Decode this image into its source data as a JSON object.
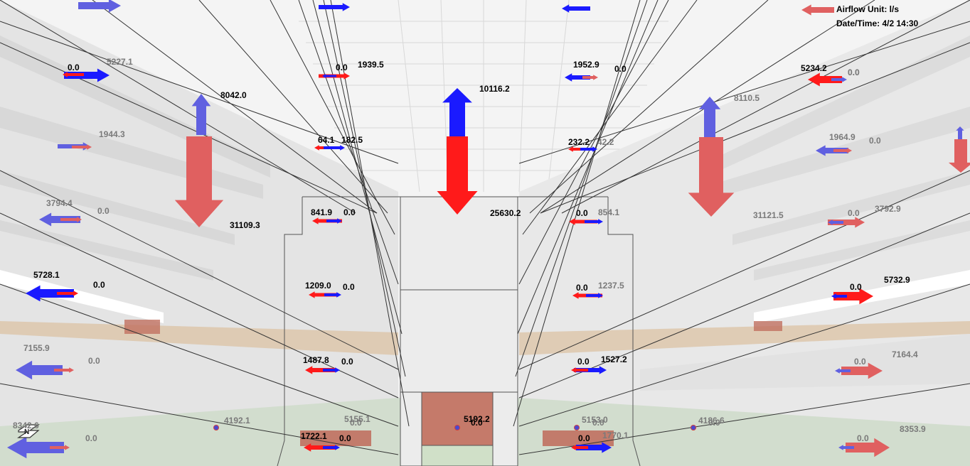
{
  "hud": {
    "airflow_unit": "Airflow Unit: l/s",
    "date_time": "Date/Time: 4/2 14:30"
  },
  "colors": {
    "supply": "#ff1a1a",
    "exhaust": "#1a1aff",
    "supply_faded": "#e06060",
    "exhaust_faded": "#6060e0",
    "wall": "#e6e6e6",
    "ceiling": "#f2f2f2",
    "floor": "#c8d8c0",
    "brick": "#c07060",
    "wood_band": "#dcc4a8"
  },
  "icons": {
    "compass": "north-compass-icon"
  },
  "airflow_labels": [
    {
      "text": "0.0",
      "tone": "dark"
    },
    {
      "text": "5227.1",
      "tone": "gray"
    },
    {
      "text": "0.0",
      "tone": "dark"
    },
    {
      "text": "1939.5",
      "tone": "dark"
    },
    {
      "text": "10116.2",
      "tone": "dark"
    },
    {
      "text": "1952.9",
      "tone": "dark"
    },
    {
      "text": "0.0",
      "tone": "dark"
    },
    {
      "text": "5234.2",
      "tone": "dark"
    },
    {
      "text": "0.0",
      "tone": "gray"
    },
    {
      "text": "8042.0",
      "tone": "dark"
    },
    {
      "text": "8110.5",
      "tone": "gray"
    },
    {
      "text": "0.0",
      "tone": "gray"
    },
    {
      "text": "1944.3",
      "tone": "gray"
    },
    {
      "text": "64.1",
      "tone": "dark"
    },
    {
      "text": "182.5",
      "tone": "dark"
    },
    {
      "text": "232.2",
      "tone": "dark"
    },
    {
      "text": "42.2",
      "tone": "gray"
    },
    {
      "text": "1964.9",
      "tone": "gray"
    },
    {
      "text": "0.0",
      "tone": "gray"
    },
    {
      "text": "3794.4",
      "tone": "gray"
    },
    {
      "text": "0.0",
      "tone": "gray"
    },
    {
      "text": "841.9",
      "tone": "dark"
    },
    {
      "text": "0.0",
      "tone": "dark"
    },
    {
      "text": "25630.2",
      "tone": "dark"
    },
    {
      "text": "0.0",
      "tone": "dark"
    },
    {
      "text": "854.1",
      "tone": "gray"
    },
    {
      "text": "31121.5",
      "tone": "gray"
    },
    {
      "text": "0.0",
      "tone": "gray"
    },
    {
      "text": "3792.9",
      "tone": "gray"
    },
    {
      "text": "31109.3",
      "tone": "dark"
    },
    {
      "text": "5728.1",
      "tone": "dark"
    },
    {
      "text": "0.0",
      "tone": "dark"
    },
    {
      "text": "1209.0",
      "tone": "dark"
    },
    {
      "text": "0.0",
      "tone": "dark"
    },
    {
      "text": "0.0",
      "tone": "dark"
    },
    {
      "text": "1237.5",
      "tone": "gray"
    },
    {
      "text": "0.0",
      "tone": "dark"
    },
    {
      "text": "5732.9",
      "tone": "dark"
    },
    {
      "text": "7155.9",
      "tone": "gray"
    },
    {
      "text": "0.0",
      "tone": "gray"
    },
    {
      "text": "1487.8",
      "tone": "dark"
    },
    {
      "text": "0.0",
      "tone": "dark"
    },
    {
      "text": "0.0",
      "tone": "dark"
    },
    {
      "text": "1527.2",
      "tone": "dark"
    },
    {
      "text": "7164.4",
      "tone": "gray"
    },
    {
      "text": "0.0",
      "tone": "gray"
    },
    {
      "text": "5192.2",
      "tone": "dark"
    },
    {
      "text": "0.0",
      "tone": "dark"
    },
    {
      "text": "4192.1",
      "tone": "gray"
    },
    {
      "text": "5155.1",
      "tone": "gray"
    },
    {
      "text": "0.0",
      "tone": "gray"
    },
    {
      "text": "5153.0",
      "tone": "gray"
    },
    {
      "text": "0.0",
      "tone": "gray"
    },
    {
      "text": "4186.6",
      "tone": "gray"
    },
    {
      "text": "0.0",
      "tone": "gray"
    },
    {
      "text": "8342.6",
      "tone": "gray"
    },
    {
      "text": "0.0",
      "tone": "gray"
    },
    {
      "text": "1722.1",
      "tone": "dark"
    },
    {
      "text": "0.0",
      "tone": "dark"
    },
    {
      "text": "1770.1",
      "tone": "gray"
    },
    {
      "text": "0.0",
      "tone": "dark"
    },
    {
      "text": "0.0",
      "tone": "gray"
    },
    {
      "text": "8353.9",
      "tone": "gray"
    }
  ]
}
